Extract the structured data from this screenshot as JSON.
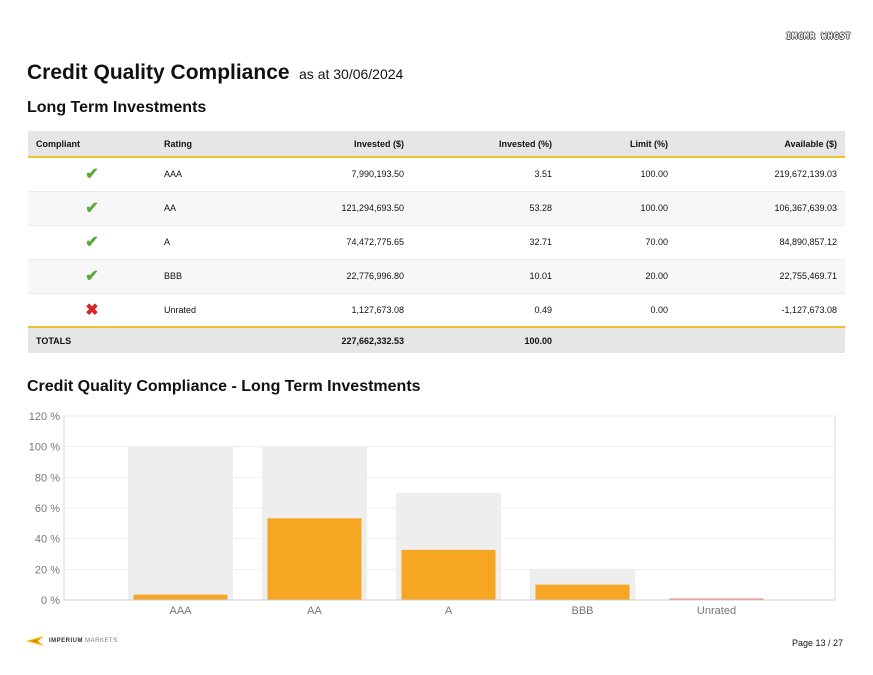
{
  "header": {
    "brand_mark": "IMCMR WHGST"
  },
  "title": {
    "main": "Credit Quality Compliance",
    "as_at": "as at 30/06/2024"
  },
  "table_section_title": "Long Term Investments",
  "table": {
    "columns": [
      "Compliant",
      "Rating",
      "Invested ($)",
      "Invested (%)",
      "Limit (%)",
      "Available ($)"
    ],
    "rows": [
      {
        "compliant": true,
        "rating": "AAA",
        "invested": "7,990,193.50",
        "invested_pct": "3.51",
        "limit": "100.00",
        "available": "219,672,139.03"
      },
      {
        "compliant": true,
        "rating": "AA",
        "invested": "121,294,693.50",
        "invested_pct": "53.28",
        "limit": "100.00",
        "available": "106,367,639.03"
      },
      {
        "compliant": true,
        "rating": "A",
        "invested": "74,472,775.65",
        "invested_pct": "32.71",
        "limit": "70.00",
        "available": "84,890,857.12"
      },
      {
        "compliant": true,
        "rating": "BBB",
        "invested": "22,776,996.80",
        "invested_pct": "10.01",
        "limit": "20.00",
        "available": "22,755,469.71"
      },
      {
        "compliant": false,
        "rating": "Unrated",
        "invested": "1,127,673.08",
        "invested_pct": "0.49",
        "limit": "0.00",
        "available": "-1,127,673.08"
      }
    ],
    "totals": {
      "label": "TOTALS",
      "invested": "227,662,332.53",
      "invested_pct": "100.00"
    }
  },
  "chart_section_title": "Credit Quality Compliance - Long Term Investments",
  "chart_data": {
    "type": "bar",
    "title": "",
    "categories": [
      "AAA",
      "AA",
      "A",
      "BBB",
      "Unrated"
    ],
    "series": [
      {
        "values": [
          100,
          100,
          70,
          20,
          0
        ],
        "color": "#eeeeee"
      },
      {
        "values": [
          3.51,
          53.28,
          32.71,
          10.01,
          0.49
        ],
        "color": "#f5a623",
        "overflow_color": "#f08070"
      }
    ],
    "ylim": [
      0,
      120
    ],
    "yticks": [
      0,
      20,
      40,
      60,
      80,
      100,
      120
    ],
    "ytick_labels": [
      "0 %",
      "20 %",
      "40 %",
      "60 %",
      "80 %",
      "100 %",
      "120 %"
    ],
    "grid": true,
    "legend": "none"
  },
  "footer": {
    "logo_bold": "IMPERIUM",
    "logo_light": "MARKETS",
    "page": "Page 13 / 27"
  }
}
